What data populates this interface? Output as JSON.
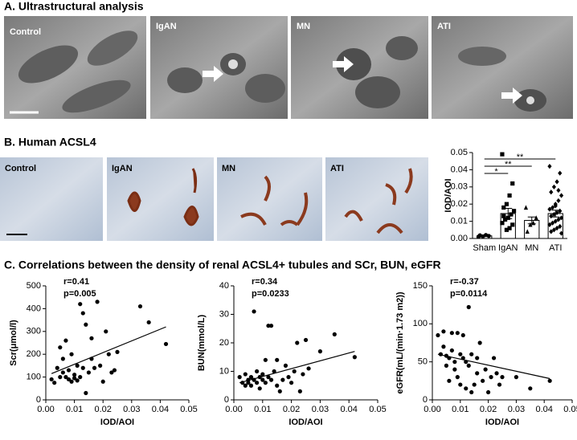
{
  "panel_a": {
    "title": "A. Ultrastructural analysis",
    "labels": [
      "Control",
      "IgAN",
      "MN",
      "ATI"
    ]
  },
  "panel_b": {
    "title": "B. Human ACSL4",
    "labels": [
      "Control",
      "IgAN",
      "MN",
      "ATI"
    ]
  },
  "panel_c": {
    "title": "C. Correlations between the density of renal ACSL4+ tubules and SCr, BUN, eGFR"
  },
  "chart_data": [
    {
      "type": "bar",
      "ylabel": "IOD/AOI",
      "categories": [
        "Sham",
        "IgAN",
        "MN",
        "ATI"
      ],
      "values": [
        0.0015,
        0.0145,
        0.0105,
        0.0145
      ],
      "errors": [
        0.0003,
        0.003,
        0.002,
        0.002
      ],
      "points": [
        [
          0.001,
          0.0015,
          0.002,
          0.0012,
          0.0018
        ],
        [
          0.049,
          0.032,
          0.025,
          0.02,
          0.018,
          0.016,
          0.014,
          0.012,
          0.011,
          0.009,
          0.008,
          0.006,
          0.005,
          0.013
        ],
        [
          0.018,
          0.012,
          0.009,
          0.008,
          0.004
        ],
        [
          0.042,
          0.038,
          0.033,
          0.03,
          0.027,
          0.025,
          0.022,
          0.02,
          0.018,
          0.017,
          0.016,
          0.015,
          0.014,
          0.013,
          0.012,
          0.011,
          0.01,
          0.009,
          0.008,
          0.007,
          0.006,
          0.005,
          0.004,
          0.003,
          0.028,
          0.019
        ]
      ],
      "markers": [
        "circle",
        "square",
        "triangle",
        "diamond"
      ],
      "color": "#000000",
      "ylim": [
        0,
        0.05
      ],
      "yticks": [
        {
          "value": 0,
          "label": "0.00"
        },
        0.01,
        0.02,
        0.03,
        0.04,
        0.05
      ],
      "annotations": [
        {
          "text": "*",
          "from": 0,
          "to": 1
        },
        {
          "text": "**",
          "from": 0,
          "to": 2
        },
        {
          "text": "**",
          "from": 0,
          "to": 3
        }
      ]
    },
    {
      "type": "scatter",
      "xlabel": "IOD/AOI",
      "ylabel": "Scr(μmol/l)",
      "annotations": [
        "r=0.41",
        "p=0.005"
      ],
      "color": "#000000",
      "x": [
        0.002,
        0.003,
        0.004,
        0.005,
        0.005,
        0.006,
        0.006,
        0.007,
        0.007,
        0.008,
        0.008,
        0.009,
        0.009,
        0.01,
        0.01,
        0.011,
        0.011,
        0.012,
        0.012,
        0.013,
        0.013,
        0.014,
        0.014,
        0.015,
        0.016,
        0.016,
        0.017,
        0.018,
        0.019,
        0.02,
        0.021,
        0.022,
        0.023,
        0.024,
        0.025,
        0.033,
        0.036,
        0.042
      ],
      "values": [
        90,
        75,
        140,
        100,
        230,
        120,
        180,
        260,
        100,
        130,
        90,
        200,
        80,
        95,
        110,
        85,
        150,
        420,
        100,
        380,
        140,
        30,
        330,
        120,
        270,
        180,
        140,
        430,
        150,
        80,
        300,
        200,
        120,
        130,
        210,
        410,
        340,
        245
      ],
      "trendline": {
        "x": [
          0.002,
          0.042
        ],
        "values": [
          115,
          320
        ]
      },
      "xlim": [
        0,
        0.05
      ],
      "xticks": [
        {
          "value": 0,
          "label": "0.00"
        },
        0.01,
        0.02,
        0.03,
        0.04,
        0.05
      ],
      "ylim": [
        0,
        500
      ],
      "yticks": [
        0,
        100,
        200,
        300,
        400,
        500
      ]
    },
    {
      "type": "scatter",
      "xlabel": "IOD/AOI",
      "ylabel": "BUN(mmol/L)",
      "annotations": [
        "r=0.34",
        "p=0.0233"
      ],
      "color": "#000000",
      "x": [
        0.002,
        0.003,
        0.004,
        0.004,
        0.005,
        0.005,
        0.006,
        0.006,
        0.007,
        0.007,
        0.008,
        0.008,
        0.009,
        0.009,
        0.01,
        0.01,
        0.011,
        0.011,
        0.012,
        0.012,
        0.013,
        0.013,
        0.014,
        0.015,
        0.015,
        0.016,
        0.017,
        0.018,
        0.019,
        0.02,
        0.021,
        0.022,
        0.023,
        0.024,
        0.025,
        0.026,
        0.03,
        0.035,
        0.042
      ],
      "values": [
        8,
        6,
        5,
        9,
        7,
        6,
        8,
        5,
        31,
        7,
        10,
        6,
        8,
        4,
        7,
        9,
        14,
        6,
        26,
        8,
        26,
        7,
        10,
        5,
        14,
        3,
        7,
        12,
        8,
        6,
        10,
        20,
        3,
        9,
        21,
        11,
        17,
        23,
        15
      ],
      "trendline": {
        "x": [
          0.002,
          0.042
        ],
        "values": [
          6,
          17
        ]
      },
      "xlim": [
        0,
        0.05
      ],
      "xticks": [
        {
          "value": 0,
          "label": "0.00"
        },
        0.01,
        0.02,
        0.03,
        0.04,
        0.05
      ],
      "ylim": [
        0,
        40
      ],
      "yticks": [
        0,
        10,
        20,
        30,
        40
      ]
    },
    {
      "type": "scatter",
      "xlabel": "IOD/AOI",
      "ylabel": "eGFR(mL/(min·1.73 m2))",
      "annotations": [
        "r=-0.37",
        "p=0.0114"
      ],
      "color": "#000000",
      "x": [
        0.002,
        0.003,
        0.004,
        0.004,
        0.005,
        0.005,
        0.006,
        0.006,
        0.007,
        0.007,
        0.008,
        0.008,
        0.009,
        0.009,
        0.01,
        0.01,
        0.011,
        0.011,
        0.012,
        0.012,
        0.013,
        0.013,
        0.014,
        0.014,
        0.015,
        0.016,
        0.016,
        0.017,
        0.018,
        0.019,
        0.02,
        0.021,
        0.022,
        0.023,
        0.024,
        0.025,
        0.03,
        0.035,
        0.042
      ],
      "values": [
        85,
        60,
        90,
        70,
        45,
        58,
        25,
        55,
        88,
        65,
        50,
        40,
        88,
        30,
        60,
        20,
        55,
        85,
        50,
        15,
        122,
        45,
        60,
        10,
        20,
        55,
        35,
        75,
        25,
        40,
        10,
        30,
        55,
        35,
        20,
        30,
        30,
        15,
        25
      ],
      "trendline": {
        "x": [
          0.002,
          0.042
        ],
        "values": [
          60,
          28
        ]
      },
      "xlim": [
        0,
        0.05
      ],
      "xticks": [
        {
          "value": 0,
          "label": "0.00"
        },
        0.01,
        0.02,
        0.03,
        0.04,
        0.05
      ],
      "ylim": [
        0,
        150
      ],
      "yticks": [
        0,
        50,
        100,
        150
      ]
    }
  ]
}
